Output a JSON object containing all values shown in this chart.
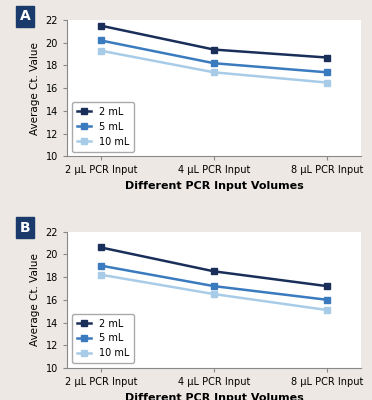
{
  "panel_A": {
    "x_labels": [
      "2 μL PCR Input",
      "4 μL PCR Input",
      "8 μL PCR Input"
    ],
    "series": [
      {
        "label": "2 mL",
        "color": "#1a2e5a",
        "values": [
          21.5,
          19.4,
          18.7
        ],
        "marker": "s"
      },
      {
        "label": "5 mL",
        "color": "#3a7abf",
        "values": [
          20.2,
          18.2,
          17.4
        ],
        "marker": "s"
      },
      {
        "label": "10 mL",
        "color": "#a8cce8",
        "values": [
          19.3,
          17.4,
          16.5
        ],
        "marker": "s"
      }
    ],
    "ylim": [
      10,
      22
    ],
    "yticks": [
      10,
      12,
      14,
      16,
      18,
      20,
      22
    ],
    "ylabel": "Average Ct. Value",
    "xlabel": "Different PCR Input Volumes",
    "panel_label": "A"
  },
  "panel_B": {
    "x_labels": [
      "2 μL PCR Input",
      "4 μL PCR Input",
      "8 μL PCR Input"
    ],
    "series": [
      {
        "label": "2 mL",
        "color": "#1a2e5a",
        "values": [
          20.6,
          18.5,
          17.2
        ],
        "marker": "s"
      },
      {
        "label": "5 mL",
        "color": "#3a7abf",
        "values": [
          19.0,
          17.2,
          16.0
        ],
        "marker": "s"
      },
      {
        "label": "10 mL",
        "color": "#a8cce8",
        "values": [
          18.2,
          16.5,
          15.1
        ],
        "marker": "s"
      }
    ],
    "ylim": [
      10,
      22
    ],
    "yticks": [
      10,
      12,
      14,
      16,
      18,
      20,
      22
    ],
    "ylabel": "Average Ct. Value",
    "xlabel": "Different PCR Input Volumes",
    "panel_label": "B"
  },
  "panel_label_bg": "#1a3a6b",
  "panel_label_color": "white",
  "bg_color": "#ede8e3",
  "plot_bg": "white",
  "linewidth": 1.8,
  "markersize": 5,
  "legend_fontsize": 7,
  "axis_fontsize": 7.5,
  "label_fontsize": 8,
  "tick_fontsize": 7
}
